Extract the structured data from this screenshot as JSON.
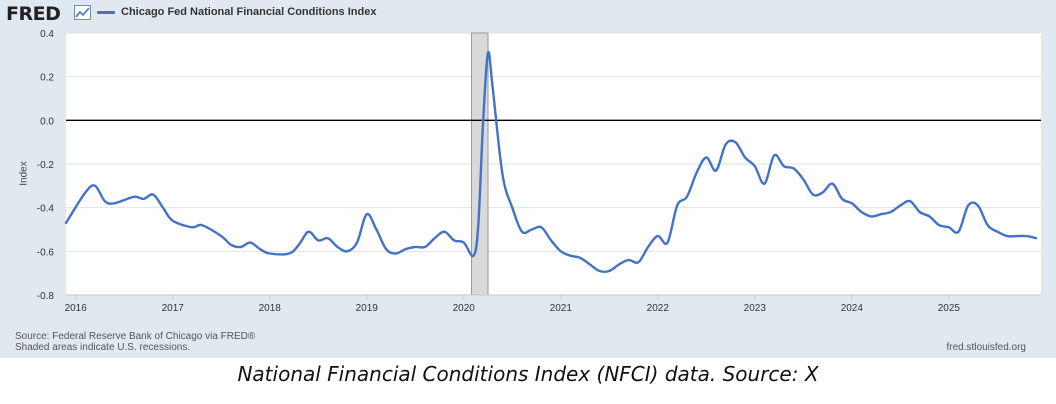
{
  "header": {
    "logo_text": "FRED",
    "logo_icon": "fred-trend-icon",
    "legend_label": "Chicago Fed National Financial Conditions Index",
    "series_color": "#4472c4"
  },
  "footer": {
    "source_line1": "Source: Federal Reserve Bank of Chicago via FRED®",
    "source_line2": "Shaded areas indicate U.S. recessions.",
    "site": "fred.stlouisfed.org"
  },
  "caption": "National Financial Conditions Index (NFCI) data. Source: X",
  "chart_data": {
    "type": "line",
    "title": "",
    "xlabel": "",
    "ylabel": "Index",
    "xlim": [
      2015.9,
      2025.95
    ],
    "ylim": [
      -0.8,
      0.4
    ],
    "yticks": [
      -0.8,
      -0.6,
      -0.4,
      -0.2,
      0.0,
      0.2,
      0.4
    ],
    "ytick_labels": [
      "-0.8",
      "-0.6",
      "-0.4",
      "-0.2",
      "0.0",
      "0.2",
      "0.4"
    ],
    "xticks": [
      2016,
      2017,
      2018,
      2019,
      2020,
      2021,
      2022,
      2023,
      2024,
      2025
    ],
    "xtick_labels": [
      "2016",
      "2017",
      "2018",
      "2019",
      "2020",
      "2021",
      "2022",
      "2023",
      "2024",
      "2025"
    ],
    "grid": "horizontal",
    "zero_line": 0.0,
    "recession": {
      "start": 2020.08,
      "end": 2020.25,
      "color": "#d9d9d9"
    },
    "series": [
      {
        "name": "Chicago Fed National Financial Conditions Index",
        "color": "#4472c4",
        "x": [
          2015.9,
          2016.1,
          2016.2,
          2016.3,
          2016.4,
          2016.6,
          2016.7,
          2016.8,
          2016.9,
          2017.0,
          2017.2,
          2017.3,
          2017.5,
          2017.6,
          2017.7,
          2017.8,
          2017.9,
          2018.0,
          2018.2,
          2018.3,
          2018.4,
          2018.5,
          2018.6,
          2018.7,
          2018.8,
          2018.9,
          2019.0,
          2019.1,
          2019.2,
          2019.3,
          2019.4,
          2019.5,
          2019.6,
          2019.7,
          2019.8,
          2019.9,
          2020.0,
          2020.1,
          2020.15,
          2020.2,
          2020.25,
          2020.3,
          2020.4,
          2020.5,
          2020.6,
          2020.7,
          2020.8,
          2020.9,
          2021.0,
          2021.1,
          2021.2,
          2021.3,
          2021.4,
          2021.5,
          2021.6,
          2021.7,
          2021.8,
          2021.9,
          2022.0,
          2022.1,
          2022.2,
          2022.3,
          2022.4,
          2022.5,
          2022.6,
          2022.7,
          2022.8,
          2022.9,
          2023.0,
          2023.1,
          2023.2,
          2023.3,
          2023.4,
          2023.5,
          2023.6,
          2023.7,
          2023.8,
          2023.9,
          2024.0,
          2024.1,
          2024.2,
          2024.3,
          2024.4,
          2024.5,
          2024.6,
          2024.7,
          2024.8,
          2024.9,
          2025.0,
          2025.1,
          2025.2,
          2025.3,
          2025.4,
          2025.5,
          2025.6,
          2025.7,
          2025.8,
          2025.9
        ],
        "values": [
          -0.47,
          -0.33,
          -0.3,
          -0.37,
          -0.38,
          -0.35,
          -0.36,
          -0.34,
          -0.4,
          -0.46,
          -0.49,
          -0.48,
          -0.53,
          -0.57,
          -0.58,
          -0.56,
          -0.59,
          -0.61,
          -0.61,
          -0.57,
          -0.51,
          -0.55,
          -0.54,
          -0.58,
          -0.6,
          -0.56,
          -0.43,
          -0.5,
          -0.59,
          -0.61,
          -0.59,
          -0.58,
          -0.58,
          -0.54,
          -0.51,
          -0.55,
          -0.56,
          -0.62,
          -0.48,
          0.0,
          0.31,
          0.14,
          -0.25,
          -0.4,
          -0.51,
          -0.5,
          -0.49,
          -0.55,
          -0.6,
          -0.62,
          -0.63,
          -0.66,
          -0.69,
          -0.69,
          -0.66,
          -0.64,
          -0.65,
          -0.58,
          -0.53,
          -0.56,
          -0.39,
          -0.35,
          -0.24,
          -0.17,
          -0.23,
          -0.11,
          -0.1,
          -0.17,
          -0.21,
          -0.29,
          -0.16,
          -0.21,
          -0.22,
          -0.27,
          -0.34,
          -0.33,
          -0.29,
          -0.36,
          -0.38,
          -0.42,
          -0.44,
          -0.43,
          -0.42,
          -0.39,
          -0.37,
          -0.42,
          -0.44,
          -0.48,
          -0.49,
          -0.51,
          -0.39,
          -0.39,
          -0.48,
          -0.51,
          -0.53,
          -0.53,
          -0.53,
          -0.54
        ]
      }
    ]
  }
}
